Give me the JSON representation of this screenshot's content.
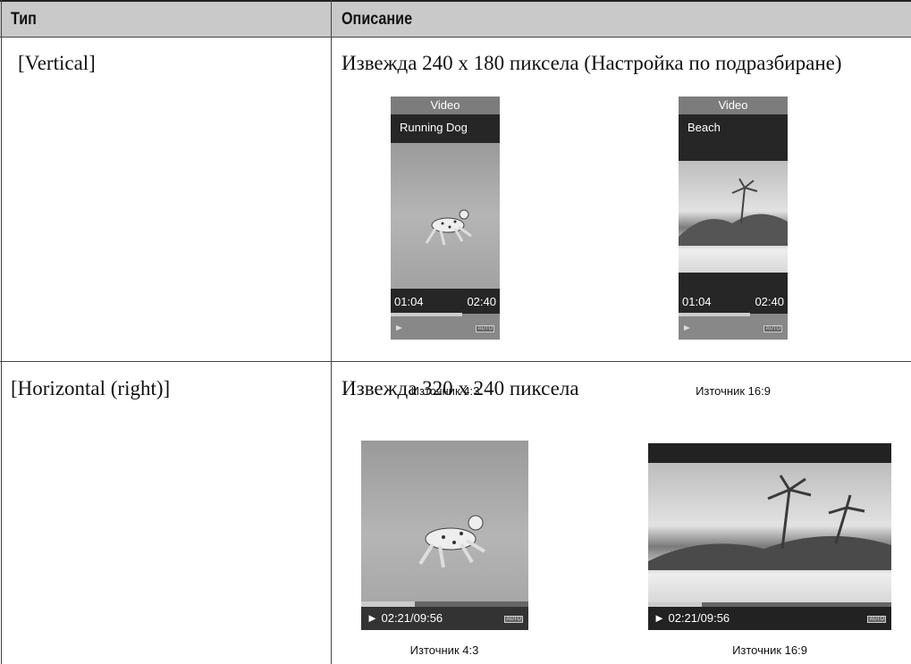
{
  "table": {
    "header": [
      "Тип",
      "Описание"
    ],
    "rows": [
      {
        "type": "[Vertical]",
        "description": "Извежда 240 x 180 пиксела (Настройка по подразбиране)",
        "screens": [
          {
            "title": "Video",
            "file": "Running Dog",
            "elapsed": "01:04",
            "total": "02:40",
            "badge": "AUTO",
            "caption": "Източник 4:3"
          },
          {
            "title": "Video",
            "file": "Beach",
            "elapsed": "01:04",
            "total": "02:40",
            "badge": "AUTO",
            "caption": "Източник 16:9"
          }
        ]
      },
      {
        "type": "[Horizontal (right)]",
        "description": "Извежда 320 x 240 пиксела",
        "screens": [
          {
            "time": "02:21/09:56",
            "badge": "AUTO",
            "caption": "Източник 4:3"
          },
          {
            "time": "02:21/09:56",
            "badge": "AUTO",
            "caption": "Източник 16:9"
          }
        ]
      }
    ]
  }
}
